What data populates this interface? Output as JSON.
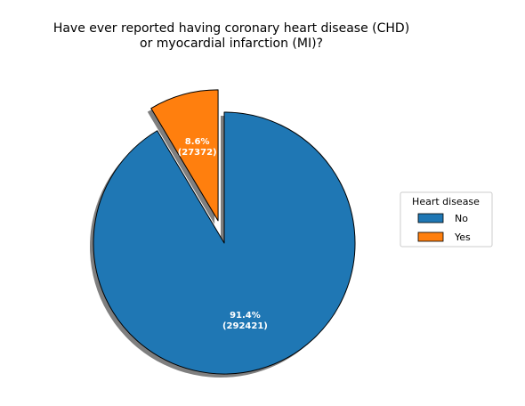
{
  "chart_data": {
    "type": "pie",
    "title_lines": [
      "Have ever reported having coronary heart disease (CHD)",
      "or myocardial infarction (MI)?"
    ],
    "categories": [
      "No",
      "Yes"
    ],
    "values": [
      292421,
      27372
    ],
    "percent_labels": [
      "91.4%",
      "8.6%"
    ],
    "count_labels": [
      "(292421)",
      "(27372)"
    ],
    "colors": [
      "#1f77b4",
      "#ff7f0e"
    ],
    "exploded": [
      false,
      true
    ],
    "shadow": true,
    "start_angle_deg": 90,
    "legend": {
      "title": "Heart disease",
      "placement": "right",
      "entries": [
        "No",
        "Yes"
      ]
    }
  }
}
